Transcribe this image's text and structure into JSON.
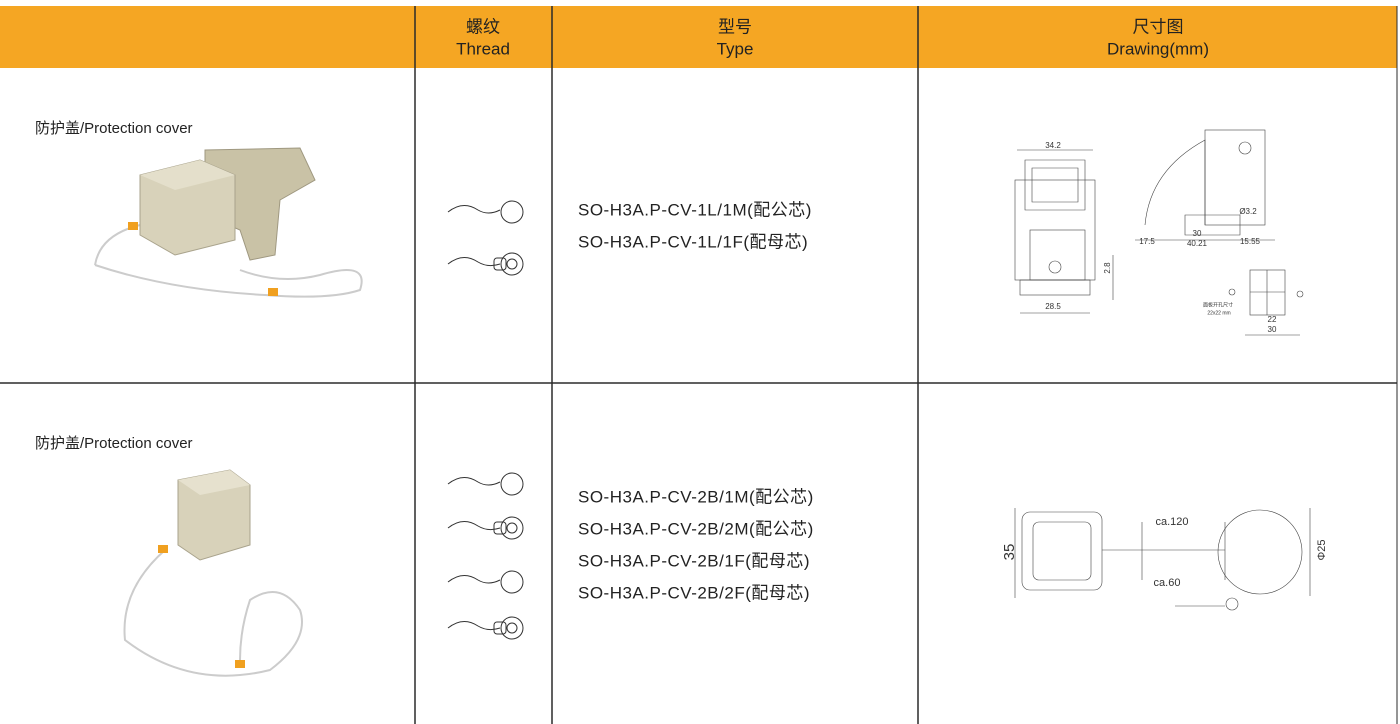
{
  "table": {
    "headers": [
      {
        "zh": "螺纹",
        "en": "Thread"
      },
      {
        "zh": "型号",
        "en": "Type"
      },
      {
        "zh": "尺寸图",
        "en": "Drawing(mm)"
      }
    ],
    "rows": [
      {
        "label": "防护盖/Protection cover",
        "types": [
          "SO-H3A.P-CV-1L/1M(配公芯)",
          "SO-H3A.P-CV-1L/1F(配母芯)"
        ],
        "drawing_labels": [
          "34.2",
          "Ø3.2",
          "17.5",
          "30",
          "40.21",
          "15.55",
          "2.8",
          "28.5",
          "面板开孔尺寸",
          "22x22 mm",
          "22",
          "30"
        ]
      },
      {
        "label": "防护盖/Protection cover",
        "types": [
          "SO-H3A.P-CV-2B/1M(配公芯)",
          "SO-H3A.P-CV-2B/2M(配公芯)",
          "SO-H3A.P-CV-2B/1F(配母芯)",
          "SO-H3A.P-CV-2B/2F(配母芯)"
        ],
        "drawing_labels": [
          "35",
          "ca.120",
          "ca.60",
          "Φ25"
        ]
      }
    ]
  }
}
